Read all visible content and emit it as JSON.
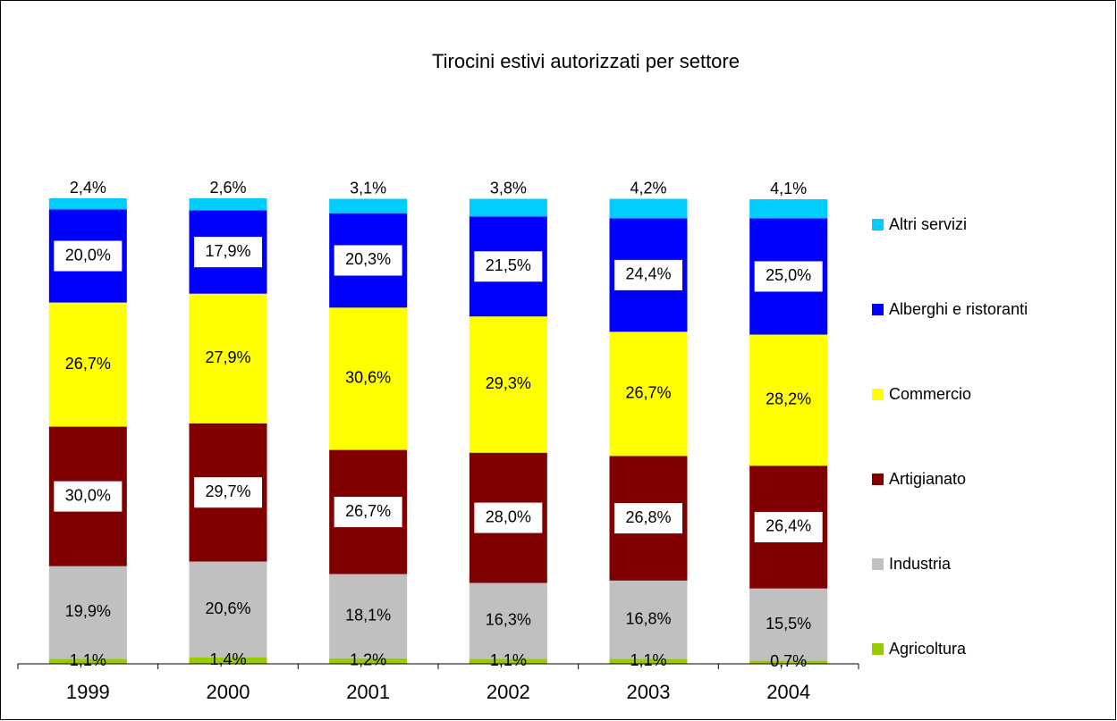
{
  "chart_data": {
    "type": "stacked_bar",
    "title": "Tirocini estivi autorizzati per settore",
    "categories": [
      "1999",
      "2000",
      "2001",
      "2002",
      "2003",
      "2004"
    ],
    "series": [
      {
        "name": "Agricoltura",
        "color": "#99cc00",
        "values": [
          1.1,
          1.4,
          1.2,
          1.1,
          1.1,
          0.7
        ],
        "value_labels": [
          "1,1%",
          "1,4%",
          "1,2%",
          "1,1%",
          "1,1%",
          "0,7%"
        ]
      },
      {
        "name": "Industria",
        "color": "#c0c0c0",
        "values": [
          19.9,
          20.6,
          18.1,
          16.3,
          16.8,
          15.5
        ],
        "value_labels": [
          "19,9%",
          "20,6%",
          "18,1%",
          "16,3%",
          "16,8%",
          "15,5%"
        ]
      },
      {
        "name": "Artigianato",
        "color": "#800000",
        "label_background": "#ffffff",
        "values": [
          30.0,
          29.7,
          26.7,
          28.0,
          26.8,
          26.4
        ],
        "value_labels": [
          "30,0%",
          "29,7%",
          "26,7%",
          "28,0%",
          "26,8%",
          "26,4%"
        ]
      },
      {
        "name": "Commercio",
        "color": "#ffff00",
        "values": [
          26.7,
          27.9,
          30.6,
          29.3,
          26.7,
          28.2
        ],
        "value_labels": [
          "26,7%",
          "27,9%",
          "30,6%",
          "29,3%",
          "26,7%",
          "28,2%"
        ]
      },
      {
        "name": "Alberghi e ristoranti",
        "color": "#0000ff",
        "label_background": "#ffffff",
        "values": [
          20.0,
          17.9,
          20.3,
          21.5,
          24.4,
          25.0
        ],
        "value_labels": [
          "20,0%",
          "17,9%",
          "20,3%",
          "21,5%",
          "24,4%",
          "25,0%"
        ]
      },
      {
        "name": "Altri servizi",
        "color": "#00ccff",
        "values": [
          2.4,
          2.6,
          3.1,
          3.8,
          4.2,
          4.1
        ],
        "value_labels": [
          "2,4%",
          "2,6%",
          "3,1%",
          "3,8%",
          "4,2%",
          "4,1%"
        ]
      }
    ],
    "legend": "right"
  }
}
